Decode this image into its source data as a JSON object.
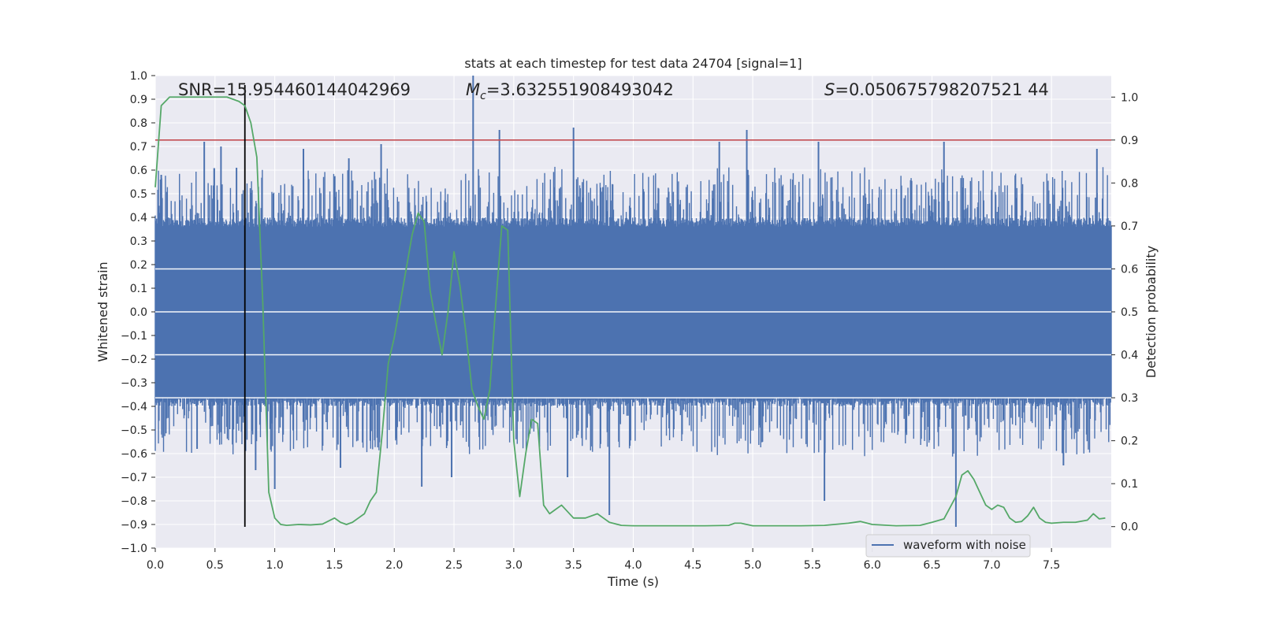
{
  "chart_data": {
    "type": "line",
    "title": "stats at each timestep for test data 24704 [signal=1]",
    "xlabel": "Time (s)",
    "ylabel_left": "Whitened strain",
    "ylabel_right": "Detection probability",
    "xlim": [
      0,
      8
    ],
    "ylim_left": [
      -1.0,
      1.0
    ],
    "ylim_right": [
      -0.05,
      1.05
    ],
    "x_ticks": [
      "0.0",
      "0.5",
      "1.0",
      "1.5",
      "2.0",
      "2.5",
      "3.0",
      "3.5",
      "4.0",
      "4.5",
      "5.0",
      "5.5",
      "6.0",
      "6.5",
      "7.0",
      "7.5"
    ],
    "y_left_ticks": [
      "1.0",
      "0.9",
      "0.8",
      "0.7",
      "0.6",
      "0.5",
      "0.4",
      "0.3",
      "0.2",
      "0.1",
      "0.0",
      "−0.1",
      "−0.2",
      "−0.3",
      "−0.4",
      "−0.5",
      "−0.6",
      "−0.7",
      "−0.8",
      "−0.9",
      "−1.0"
    ],
    "y_right_ticks": [
      "1.0",
      "0.9",
      "0.8",
      "0.7",
      "0.6",
      "0.5",
      "0.4",
      "0.3",
      "0.2",
      "0.1",
      "0.0"
    ],
    "grid": true,
    "legend_placement": "lower-right",
    "annotations": {
      "snr": "SNR=15.954460144042969",
      "mc": "=3.632551908493042",
      "s": "=0.050675798207521 44"
    },
    "threshold": {
      "axis": "right",
      "value": 0.9,
      "color": "#c44e52"
    },
    "event_marker": {
      "x": 0.75,
      "y_from": -0.91,
      "y_to": 0.96,
      "color": "#000000"
    },
    "series": [
      {
        "name": "waveform with noise",
        "axis": "left",
        "color": "#4c72b0",
        "description": "dense noise trace, core band about ±0.4 with spikes",
        "spikes_up": [
          [
            0.05,
            0.58
          ],
          [
            0.41,
            0.72
          ],
          [
            0.55,
            0.7
          ],
          [
            0.68,
            0.61
          ],
          [
            1.24,
            0.69
          ],
          [
            1.62,
            0.65
          ],
          [
            1.89,
            0.71
          ],
          [
            2.66,
            1.0
          ],
          [
            2.88,
            0.77
          ],
          [
            3.5,
            0.78
          ],
          [
            4.72,
            0.72
          ],
          [
            4.95,
            0.77
          ],
          [
            5.55,
            0.72
          ],
          [
            6.6,
            0.72
          ],
          [
            7.88,
            0.69
          ]
        ],
        "spikes_down": [
          [
            0.35,
            -0.58
          ],
          [
            0.84,
            -0.67
          ],
          [
            1.0,
            -0.75
          ],
          [
            1.55,
            -0.66
          ],
          [
            2.23,
            -0.74
          ],
          [
            2.48,
            -0.7
          ],
          [
            3.45,
            -0.7
          ],
          [
            3.8,
            -0.86
          ],
          [
            5.6,
            -0.8
          ],
          [
            6.7,
            -0.91
          ],
          [
            7.6,
            -0.65
          ]
        ]
      },
      {
        "axis": "right",
        "color": "#55a868",
        "x": [
          0.0,
          0.05,
          0.12,
          0.2,
          0.3,
          0.4,
          0.5,
          0.6,
          0.7,
          0.75,
          0.8,
          0.85,
          0.9,
          0.95,
          1.0,
          1.05,
          1.1,
          1.2,
          1.3,
          1.4,
          1.5,
          1.55,
          1.6,
          1.65,
          1.7,
          1.75,
          1.8,
          1.85,
          1.9,
          1.95,
          2.0,
          2.05,
          2.1,
          2.15,
          2.2,
          2.25,
          2.3,
          2.35,
          2.4,
          2.45,
          2.5,
          2.55,
          2.6,
          2.65,
          2.7,
          2.75,
          2.8,
          2.85,
          2.9,
          2.95,
          3.0,
          3.05,
          3.1,
          3.15,
          3.2,
          3.25,
          3.3,
          3.35,
          3.4,
          3.5,
          3.6,
          3.7,
          3.75,
          3.8,
          3.9,
          4.0,
          4.2,
          4.4,
          4.6,
          4.8,
          4.85,
          4.9,
          5.0,
          5.1,
          5.2,
          5.4,
          5.6,
          5.8,
          5.9,
          6.0,
          6.2,
          6.4,
          6.5,
          6.6,
          6.7,
          6.75,
          6.8,
          6.85,
          6.9,
          6.95,
          7.0,
          7.05,
          7.1,
          7.15,
          7.2,
          7.25,
          7.3,
          7.35,
          7.4,
          7.45,
          7.5,
          7.6,
          7.7,
          7.8,
          7.85,
          7.9,
          7.95
        ],
        "y": [
          0.79,
          0.98,
          1.0,
          1.0,
          1.0,
          1.0,
          1.0,
          1.0,
          0.99,
          0.98,
          0.94,
          0.86,
          0.52,
          0.08,
          0.02,
          0.005,
          0.003,
          0.005,
          0.004,
          0.006,
          0.02,
          0.01,
          0.005,
          0.01,
          0.02,
          0.03,
          0.06,
          0.08,
          0.22,
          0.38,
          0.44,
          0.52,
          0.6,
          0.68,
          0.73,
          0.71,
          0.55,
          0.47,
          0.4,
          0.5,
          0.64,
          0.56,
          0.45,
          0.32,
          0.28,
          0.25,
          0.32,
          0.52,
          0.7,
          0.69,
          0.2,
          0.07,
          0.17,
          0.25,
          0.24,
          0.05,
          0.03,
          0.04,
          0.05,
          0.02,
          0.02,
          0.03,
          0.02,
          0.01,
          0.003,
          0.002,
          0.002,
          0.002,
          0.002,
          0.003,
          0.008,
          0.008,
          0.002,
          0.002,
          0.002,
          0.002,
          0.003,
          0.008,
          0.012,
          0.005,
          0.002,
          0.003,
          0.01,
          0.018,
          0.07,
          0.12,
          0.13,
          0.11,
          0.08,
          0.05,
          0.04,
          0.05,
          0.045,
          0.02,
          0.01,
          0.012,
          0.025,
          0.045,
          0.02,
          0.01,
          0.008,
          0.01,
          0.01,
          0.015,
          0.03,
          0.018,
          0.02
        ]
      }
    ]
  }
}
